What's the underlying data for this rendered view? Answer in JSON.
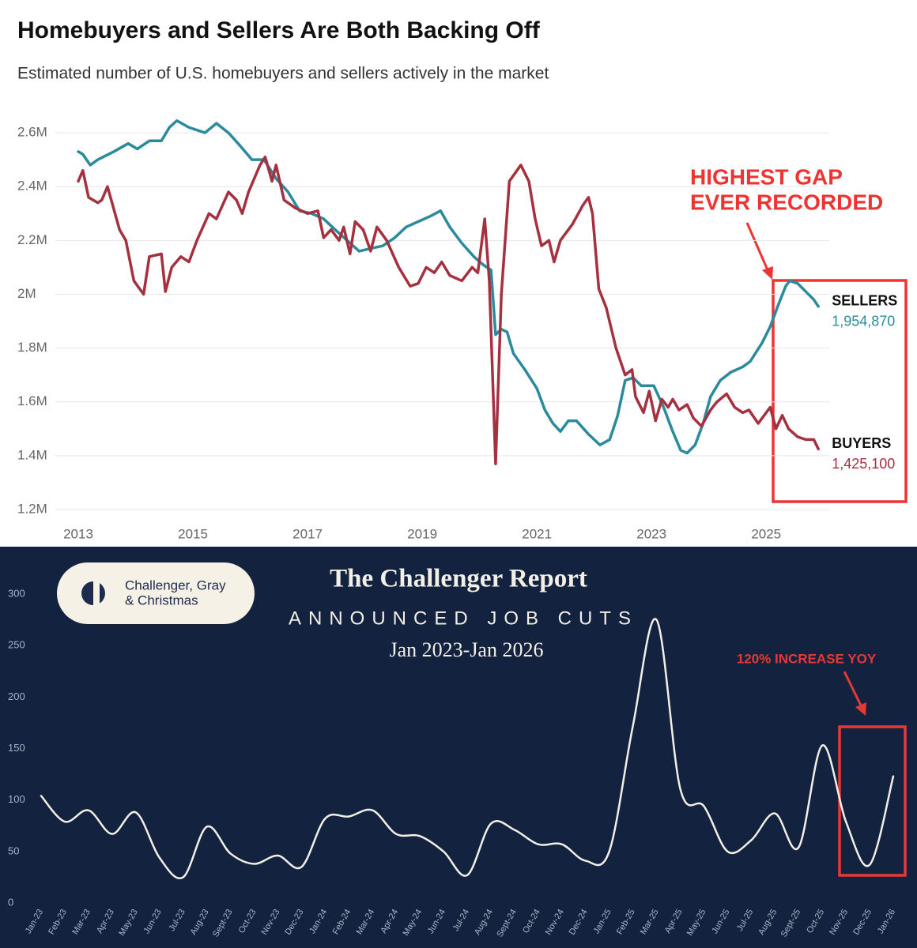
{
  "chart_data": [
    {
      "type": "line",
      "title": "Homebuyers and Sellers Are Both Backing Off",
      "subtitle": "Estimated number of U.S. homebuyers and sellers actively in the market",
      "annotation_lines": [
        "HIGHEST GAP",
        "EVER RECORDED"
      ],
      "xlim": [
        2012.6,
        2026.1
      ],
      "xticks": [
        2013,
        2015,
        2017,
        2019,
        2021,
        2023,
        2025
      ],
      "ylim": [
        1200000,
        2700000
      ],
      "yticks": [
        {
          "value": 1200000,
          "label": "1.2M"
        },
        {
          "value": 1400000,
          "label": "1.4M"
        },
        {
          "value": 1600000,
          "label": "1.6M"
        },
        {
          "value": 1800000,
          "label": "1.8M"
        },
        {
          "value": 2000000,
          "label": "2M"
        },
        {
          "value": 2200000,
          "label": "2.2M"
        },
        {
          "value": 2400000,
          "label": "2.4M"
        },
        {
          "value": 2600000,
          "label": "2.6M"
        }
      ],
      "grid": true,
      "smooth": false,
      "series": [
        {
          "name": "SELLERS",
          "color": "#2b8a9b",
          "end_label": "1,954,870",
          "x": [
            2013.0,
            2013.08,
            2013.21,
            2013.34,
            2013.62,
            2013.87,
            2014.03,
            2014.24,
            2014.45,
            2014.59,
            2014.72,
            2014.93,
            2015.21,
            2015.41,
            2015.62,
            2015.83,
            2016.03,
            2016.24,
            2016.45,
            2016.66,
            2016.86,
            2017.07,
            2017.28,
            2017.48,
            2017.69,
            2017.9,
            2018.1,
            2018.31,
            2018.52,
            2018.72,
            2018.93,
            2019.14,
            2019.32,
            2019.48,
            2019.69,
            2019.9,
            2020.06,
            2020.2,
            2020.28,
            2020.38,
            2020.48,
            2020.59,
            2020.79,
            2021.0,
            2021.14,
            2021.28,
            2021.41,
            2021.55,
            2021.69,
            2021.9,
            2022.1,
            2022.27,
            2022.41,
            2022.54,
            2022.68,
            2022.82,
            2023.04,
            2023.21,
            2023.37,
            2023.51,
            2023.62,
            2023.76,
            2023.9,
            2024.03,
            2024.2,
            2024.38,
            2024.59,
            2024.72,
            2024.93,
            2025.07,
            2025.21,
            2025.34,
            2025.41,
            2025.55,
            2025.69,
            2025.83,
            2025.91
          ],
          "values": [
            2530000,
            2520000,
            2480000,
            2500000,
            2530000,
            2560000,
            2540000,
            2570000,
            2570000,
            2620000,
            2645000,
            2620000,
            2600000,
            2635000,
            2600000,
            2550000,
            2500000,
            2500000,
            2430000,
            2380000,
            2310000,
            2300000,
            2280000,
            2240000,
            2200000,
            2160000,
            2170000,
            2180000,
            2210000,
            2250000,
            2270000,
            2290000,
            2310000,
            2250000,
            2190000,
            2140000,
            2110000,
            2090000,
            1850000,
            1870000,
            1860000,
            1780000,
            1720000,
            1650000,
            1570000,
            1520000,
            1490000,
            1530000,
            1530000,
            1480000,
            1440000,
            1460000,
            1550000,
            1680000,
            1690000,
            1660000,
            1660000,
            1580000,
            1490000,
            1420000,
            1410000,
            1440000,
            1520000,
            1620000,
            1680000,
            1710000,
            1730000,
            1750000,
            1820000,
            1880000,
            1960000,
            2030000,
            2050000,
            2040000,
            2010000,
            1980000,
            1954870
          ]
        },
        {
          "name": "BUYERS",
          "color": "#a5303f",
          "end_label": "1,425,100",
          "x": [
            2013.0,
            2013.08,
            2013.18,
            2013.34,
            2013.41,
            2013.51,
            2013.72,
            2013.83,
            2013.97,
            2014.14,
            2014.24,
            2014.45,
            2014.52,
            2014.63,
            2014.79,
            2014.93,
            2015.07,
            2015.28,
            2015.41,
            2015.62,
            2015.76,
            2015.86,
            2015.97,
            2016.17,
            2016.26,
            2016.38,
            2016.45,
            2016.59,
            2016.79,
            2017.0,
            2017.18,
            2017.28,
            2017.41,
            2017.55,
            2017.63,
            2017.74,
            2017.83,
            2017.97,
            2018.1,
            2018.21,
            2018.38,
            2018.59,
            2018.79,
            2018.93,
            2019.07,
            2019.21,
            2019.34,
            2019.48,
            2019.69,
            2019.87,
            2019.97,
            2020.09,
            2020.17,
            2020.28,
            2020.38,
            2020.52,
            2020.72,
            2020.86,
            2020.97,
            2021.08,
            2021.21,
            2021.3,
            2021.41,
            2021.62,
            2021.8,
            2021.9,
            2021.97,
            2022.08,
            2022.21,
            2022.38,
            2022.54,
            2022.66,
            2022.72,
            2022.86,
            2022.96,
            2023.07,
            2023.18,
            2023.29,
            2023.37,
            2023.48,
            2023.62,
            2023.73,
            2023.87,
            2024.03,
            2024.14,
            2024.31,
            2024.45,
            2024.59,
            2024.7,
            2024.86,
            2025.07,
            2025.17,
            2025.28,
            2025.39,
            2025.55,
            2025.69,
            2025.83,
            2025.91
          ],
          "values": [
            2420000,
            2460000,
            2360000,
            2340000,
            2350000,
            2400000,
            2240000,
            2200000,
            2050000,
            2000000,
            2140000,
            2150000,
            2010000,
            2100000,
            2140000,
            2120000,
            2200000,
            2300000,
            2280000,
            2380000,
            2350000,
            2300000,
            2380000,
            2480000,
            2510000,
            2420000,
            2480000,
            2350000,
            2320000,
            2300000,
            2310000,
            2210000,
            2240000,
            2200000,
            2250000,
            2150000,
            2270000,
            2240000,
            2160000,
            2250000,
            2200000,
            2100000,
            2030000,
            2040000,
            2100000,
            2080000,
            2120000,
            2070000,
            2050000,
            2100000,
            2080000,
            2280000,
            2050000,
            1370000,
            2000000,
            2420000,
            2480000,
            2420000,
            2280000,
            2180000,
            2200000,
            2120000,
            2200000,
            2260000,
            2330000,
            2360000,
            2300000,
            2020000,
            1950000,
            1800000,
            1700000,
            1720000,
            1620000,
            1560000,
            1640000,
            1530000,
            1610000,
            1580000,
            1610000,
            1570000,
            1590000,
            1540000,
            1510000,
            1570000,
            1600000,
            1630000,
            1580000,
            1560000,
            1570000,
            1520000,
            1580000,
            1500000,
            1550000,
            1500000,
            1470000,
            1460000,
            1460000,
            1425100
          ]
        }
      ]
    },
    {
      "type": "line",
      "title": "The Challenger Report",
      "subtitle": "ANNOUNCED JOB CUTS",
      "date_range": "Jan 2023-Jan 2026",
      "logo_lines": [
        "Challenger, Gray",
        "& Christmas"
      ],
      "annotation": "120% INCREASE YOY",
      "ylim": [
        0,
        300
      ],
      "yticks": [
        0,
        50,
        100,
        150,
        200,
        250,
        300
      ],
      "grid": false,
      "smooth": true,
      "color": "#f2efe6",
      "categories": [
        "Jan-23",
        "Feb-23",
        "Mar-23",
        "Apr-23",
        "May-23",
        "Jun-23",
        "Jul-23",
        "Aug-23",
        "Sept-23",
        "Oct-23",
        "Nov-23",
        "Dec-23",
        "Jan-24",
        "Feb-24",
        "Mar-24",
        "Apr-24",
        "May-24",
        "Jun-24",
        "Jul-24",
        "Aug-24",
        "Sept-24",
        "Oct-24",
        "Nov-24",
        "Dec-24",
        "Jan-25",
        "Feb-25",
        "Mar-25",
        "Apr-25",
        "May-25",
        "Jun-25",
        "Jul-25",
        "Aug-25",
        "Sept-25",
        "Oct-25",
        "Nov-25",
        "Dec-25",
        "Jan-26"
      ],
      "values": [
        104,
        79,
        90,
        67,
        88,
        44,
        25,
        74,
        48,
        38,
        46,
        35,
        82,
        84,
        90,
        67,
        65,
        50,
        27,
        77,
        71,
        57,
        57,
        41,
        50,
        172,
        275,
        111,
        94,
        50,
        61,
        87,
        54,
        153,
        79,
        37,
        123
      ]
    }
  ]
}
